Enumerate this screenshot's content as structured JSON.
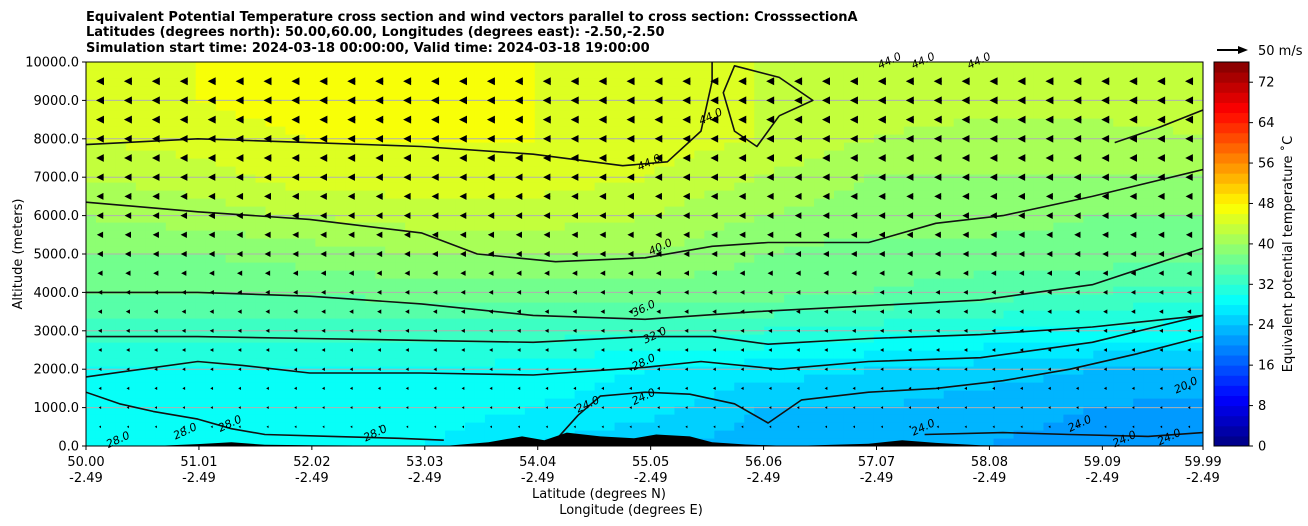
{
  "chart_data": {
    "type": "heatmap",
    "title_lines": [
      "Equivalent Potential Temperature cross section and wind vectors parallel to cross section: CrosssectionA",
      "Latitudes (degrees north): 50.00,60.00, Longitudes (degrees east): -2.50,-2.50",
      "Simulation start time: 2024-03-18 00:00:00, Valid time: 2024-03-18 19:00:00"
    ],
    "ylabel": "Altitude (meters)",
    "xlabel_lines": [
      "Latitude (degrees N)",
      "Longitude (degrees E)"
    ],
    "y_ticks": [
      "0.0",
      "1000.0",
      "2000.0",
      "3000.0",
      "4000.0",
      "5000.0",
      "6000.0",
      "7000.0",
      "8000.0",
      "9000.0",
      "10000.0"
    ],
    "ylim": [
      0,
      10000
    ],
    "x_ticks": [
      {
        "lat": "50.00",
        "lon": "-2.49"
      },
      {
        "lat": "51.01",
        "lon": "-2.49"
      },
      {
        "lat": "52.02",
        "lon": "-2.49"
      },
      {
        "lat": "53.03",
        "lon": "-2.49"
      },
      {
        "lat": "54.04",
        "lon": "-2.49"
      },
      {
        "lat": "55.05",
        "lon": "-2.49"
      },
      {
        "lat": "56.06",
        "lon": "-2.49"
      },
      {
        "lat": "57.07",
        "lon": "-2.49"
      },
      {
        "lat": "58.08",
        "lon": "-2.49"
      },
      {
        "lat": "59.09",
        "lon": "-2.49"
      },
      {
        "lat": "59.99",
        "lon": "-2.49"
      }
    ],
    "xlim": [
      50.0,
      59.99
    ],
    "grid": "horizontal",
    "colorbar": {
      "label": "Equivalent potential temperature ˚C",
      "ticks": [
        "0",
        "8",
        "16",
        "24",
        "32",
        "40",
        "48",
        "56",
        "64",
        "72"
      ],
      "range": [
        0,
        76
      ],
      "colormap": "jet"
    },
    "wind_key": {
      "label": "50 m/s"
    },
    "field": {
      "note_units": "degrees C",
      "rows_altitude_m": [
        0,
        1000,
        2000,
        3000,
        4000,
        5000,
        6000,
        7000,
        8000,
        9000,
        10000
      ],
      "cols_latitude": [
        50.0,
        51.0,
        52.0,
        53.0,
        54.0,
        55.0,
        56.0,
        57.0,
        58.0,
        59.0,
        59.99
      ],
      "values": [
        [
          28,
          28,
          28,
          28,
          26,
          24,
          23,
          22,
          22,
          21,
          20
        ],
        [
          28,
          29,
          29,
          29,
          28,
          27,
          24,
          24,
          23,
          22,
          21
        ],
        [
          30,
          30,
          30,
          30,
          29,
          28,
          27,
          26,
          25,
          24,
          24
        ],
        [
          33,
          33,
          33,
          33,
          33,
          32,
          32,
          31,
          30,
          29,
          29
        ],
        [
          36,
          36,
          36,
          37,
          37,
          37,
          37,
          36,
          35,
          34,
          33
        ],
        [
          38,
          38,
          39,
          40,
          40,
          40,
          38,
          37,
          37,
          37,
          37
        ],
        [
          40,
          41,
          42,
          43,
          43,
          42,
          40,
          39,
          39,
          38,
          38
        ],
        [
          42,
          43,
          45,
          45,
          45,
          44,
          42,
          40,
          40,
          40,
          40
        ],
        [
          44,
          45,
          46,
          46,
          46,
          45,
          44,
          42,
          41,
          41,
          42
        ],
        [
          45,
          46,
          47,
          47,
          46,
          45,
          44,
          43,
          43,
          43,
          43
        ],
        [
          45,
          46,
          47,
          47,
          46,
          45,
          44,
          44,
          44,
          44,
          44
        ]
      ]
    },
    "contours": [
      {
        "label": "24.0",
        "points": [
          [
            54.2,
            150
          ],
          [
            54.4,
            800
          ],
          [
            54.6,
            1300
          ],
          [
            55.0,
            1400
          ],
          [
            55.4,
            1350
          ],
          [
            55.8,
            1100
          ],
          [
            56.1,
            600
          ],
          [
            56.4,
            1200
          ],
          [
            57.0,
            1400
          ],
          [
            57.6,
            1500
          ],
          [
            58.2,
            1700
          ],
          [
            58.8,
            2000
          ],
          [
            59.4,
            2400
          ],
          [
            59.99,
            2850
          ]
        ]
      },
      {
        "label": "24.0",
        "points": [
          [
            57.5,
            300
          ],
          [
            58.2,
            350
          ],
          [
            58.8,
            300
          ],
          [
            59.5,
            250
          ],
          [
            59.99,
            350
          ]
        ]
      },
      {
        "label": "28.0",
        "points": [
          [
            50.0,
            1800
          ],
          [
            50.5,
            2000
          ],
          [
            51.0,
            2200
          ],
          [
            51.4,
            2100
          ],
          [
            52.0,
            1900
          ],
          [
            53.0,
            1900
          ],
          [
            54.0,
            1850
          ],
          [
            55.0,
            2050
          ],
          [
            55.5,
            2200
          ],
          [
            56.2,
            2000
          ],
          [
            57.0,
            2200
          ],
          [
            58.0,
            2300
          ],
          [
            59.0,
            2700
          ],
          [
            59.99,
            3400
          ]
        ]
      },
      {
        "label": "28.0",
        "points": [
          [
            50.0,
            1400
          ],
          [
            50.3,
            1100
          ],
          [
            50.6,
            900
          ],
          [
            51.0,
            700
          ],
          [
            51.3,
            450
          ],
          [
            51.6,
            300
          ],
          [
            52.2,
            250
          ],
          [
            52.8,
            200
          ],
          [
            53.2,
            150
          ]
        ]
      },
      {
        "label": "32.0",
        "points": [
          [
            50.0,
            2850
          ],
          [
            51.0,
            2850
          ],
          [
            52.0,
            2800
          ],
          [
            53.0,
            2750
          ],
          [
            54.0,
            2700
          ],
          [
            55.0,
            2850
          ],
          [
            55.6,
            2850
          ],
          [
            56.1,
            2650
          ],
          [
            57.0,
            2800
          ],
          [
            58.0,
            2900
          ],
          [
            59.0,
            3100
          ],
          [
            59.99,
            3400
          ]
        ]
      },
      {
        "label": "36.0",
        "points": [
          [
            50.0,
            4000
          ],
          [
            51.0,
            4000
          ],
          [
            52.0,
            3900
          ],
          [
            53.0,
            3700
          ],
          [
            54.0,
            3400
          ],
          [
            55.0,
            3300
          ],
          [
            56.0,
            3500
          ],
          [
            57.0,
            3650
          ],
          [
            58.0,
            3800
          ],
          [
            59.0,
            4200
          ],
          [
            59.99,
            5150
          ]
        ]
      },
      {
        "label": "40.0",
        "points": [
          [
            50.0,
            6350
          ],
          [
            51.0,
            6100
          ],
          [
            52.0,
            5900
          ],
          [
            53.0,
            5550
          ],
          [
            53.5,
            5000
          ],
          [
            54.2,
            4800
          ],
          [
            55.0,
            4900
          ],
          [
            55.6,
            5200
          ],
          [
            56.1,
            5300
          ],
          [
            57.0,
            5300
          ],
          [
            57.6,
            5800
          ],
          [
            58.2,
            6000
          ],
          [
            59.0,
            6500
          ],
          [
            59.99,
            7200
          ]
        ]
      },
      {
        "label": "44.0",
        "points": [
          [
            50.0,
            7850
          ],
          [
            51.0,
            8000
          ],
          [
            52.0,
            7900
          ],
          [
            53.0,
            7800
          ],
          [
            54.0,
            7600
          ],
          [
            54.8,
            7300
          ],
          [
            55.2,
            7400
          ],
          [
            55.5,
            8200
          ],
          [
            55.6,
            9500
          ],
          [
            55.6,
            10000
          ]
        ]
      },
      {
        "label": "44.0",
        "points": [
          [
            56.2,
            8600
          ],
          [
            56.5,
            9000
          ],
          [
            56.2,
            9600
          ],
          [
            55.8,
            9900
          ],
          [
            55.7,
            9200
          ],
          [
            55.8,
            8200
          ],
          [
            56.0,
            7800
          ],
          [
            56.2,
            8600
          ]
        ]
      },
      {
        "label": "",
        "points": [
          [
            59.2,
            7900
          ],
          [
            59.6,
            8300
          ],
          [
            59.99,
            8750
          ]
        ]
      }
    ],
    "contour_label_marks": [
      {
        "label": "44.0",
        "lat": 55.05,
        "alt": 7300
      },
      {
        "label": "44.0",
        "lat": 55.6,
        "alt": 8500
      },
      {
        "label": "40.0",
        "lat": 55.15,
        "alt": 5100
      },
      {
        "label": "36.0",
        "lat": 55.0,
        "alt": 3500
      },
      {
        "label": "32.0",
        "lat": 55.1,
        "alt": 2800
      },
      {
        "label": "28.0",
        "lat": 55.0,
        "alt": 2100
      },
      {
        "label": "24.0",
        "lat": 55.0,
        "alt": 1200
      },
      {
        "label": "24.0",
        "lat": 54.5,
        "alt": 1000
      },
      {
        "label": "28.0",
        "lat": 50.3,
        "alt": 80
      },
      {
        "label": "28.0",
        "lat": 50.9,
        "alt": 300
      },
      {
        "label": "28.0",
        "lat": 51.3,
        "alt": 500
      },
      {
        "label": "28.0",
        "lat": 52.6,
        "alt": 250
      },
      {
        "label": "24.0",
        "lat": 57.5,
        "alt": 400
      },
      {
        "label": "24.0",
        "lat": 58.9,
        "alt": 500
      },
      {
        "label": "24.0",
        "lat": 59.3,
        "alt": 100
      },
      {
        "label": "24.0",
        "lat": 59.7,
        "alt": 150
      },
      {
        "label": "20.0",
        "lat": 59.85,
        "alt": 1500
      },
      {
        "label": "44.0",
        "lat": 57.2,
        "alt": 9950
      },
      {
        "label": "44.0",
        "lat": 57.5,
        "alt": 9950
      },
      {
        "label": "44.0",
        "lat": 58.0,
        "alt": 9950
      }
    ],
    "terrain": [
      [
        50.0,
        0
      ],
      [
        50.6,
        0
      ],
      [
        51.0,
        50
      ],
      [
        51.3,
        100
      ],
      [
        51.6,
        30
      ],
      [
        52.0,
        20
      ],
      [
        52.6,
        10
      ],
      [
        53.2,
        0
      ],
      [
        53.6,
        100
      ],
      [
        53.9,
        250
      ],
      [
        54.1,
        150
      ],
      [
        54.3,
        350
      ],
      [
        54.6,
        250
      ],
      [
        54.9,
        200
      ],
      [
        55.1,
        300
      ],
      [
        55.4,
        250
      ],
      [
        55.6,
        100
      ],
      [
        55.9,
        40
      ],
      [
        56.3,
        0
      ],
      [
        57.0,
        60
      ],
      [
        57.3,
        150
      ],
      [
        57.6,
        80
      ],
      [
        58.0,
        20
      ],
      [
        58.6,
        0
      ],
      [
        59.99,
        0
      ]
    ],
    "wind": {
      "rows_altitude_m": [
        9500,
        9000,
        8500,
        8000,
        7500,
        7000,
        6500,
        6000,
        5500,
        5000,
        4500,
        4000,
        3500,
        3000,
        2500,
        2000,
        1500,
        1000,
        500
      ],
      "arrow_size": [
        1.0,
        1.0,
        1.0,
        0.95,
        0.95,
        0.9,
        0.85,
        0.8,
        0.75,
        0.7,
        0.6,
        0.5,
        0.45,
        0.4,
        0.35,
        0.3,
        0.25,
        0.2,
        0.15
      ],
      "direction": "southward"
    }
  }
}
